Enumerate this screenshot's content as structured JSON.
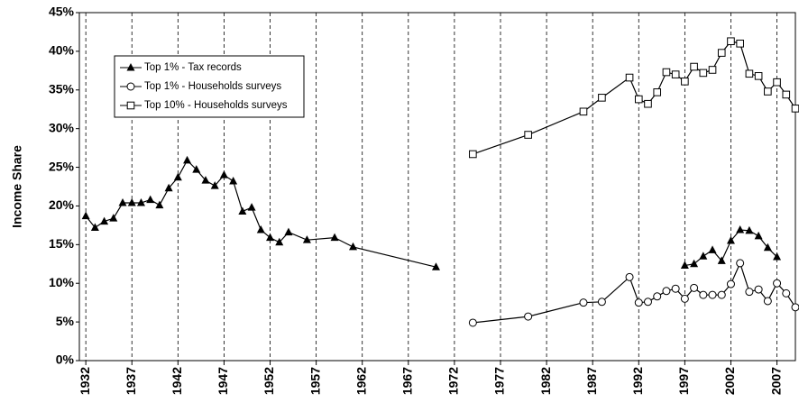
{
  "chart_data": {
    "type": "line",
    "y_label": "Income Share",
    "xlim": [
      1931.3,
      2009
    ],
    "xticks": [
      1932,
      1937,
      1942,
      1947,
      1952,
      1957,
      1962,
      1967,
      1972,
      1977,
      1982,
      1987,
      1992,
      1997,
      2002,
      2007
    ],
    "ylim": [
      0,
      45
    ],
    "yticks": [
      {
        "value": 0,
        "label": "0%"
      },
      {
        "value": 5,
        "label": "5%"
      },
      {
        "value": 10,
        "label": "10%"
      },
      {
        "value": 15,
        "label": "15%"
      },
      {
        "value": 20,
        "label": "20%"
      },
      {
        "value": 25,
        "label": "25%"
      },
      {
        "value": 30,
        "label": "30%"
      },
      {
        "value": 35,
        "label": "35%"
      },
      {
        "value": 40,
        "label": "40%"
      },
      {
        "value": 45,
        "label": "45%"
      }
    ],
    "grid": true,
    "legend": "upper left",
    "series": [
      {
        "name": "Top 1% - Tax records",
        "color": "#000000",
        "marker": "triangle",
        "x": [
          1932,
          1933,
          1934,
          1935,
          1936,
          1937,
          1938,
          1939,
          1940,
          1941,
          1942,
          1943,
          1944,
          1945,
          1946,
          1947,
          1948,
          1949,
          1950,
          1951,
          1952,
          1953,
          1954,
          1956,
          1959,
          1961,
          1970,
          null,
          1997,
          1998,
          1999,
          2000,
          2001,
          2002,
          2003,
          2004,
          2005,
          2006,
          2007
        ],
        "values": [
          18.7,
          17.2,
          18.0,
          18.4,
          20.4,
          20.4,
          20.4,
          20.8,
          20.1,
          22.3,
          23.7,
          25.9,
          24.7,
          23.3,
          22.6,
          24.0,
          23.2,
          19.3,
          19.8,
          16.9,
          15.9,
          15.3,
          16.6,
          15.6,
          15.9,
          14.7,
          12.1,
          null,
          12.3,
          12.5,
          13.5,
          14.3,
          12.9,
          15.5,
          16.9,
          16.8,
          16.1,
          14.6,
          13.4
        ]
      },
      {
        "name": "Top 1% - Households surveys",
        "color": "#000000",
        "marker": "circle",
        "x": [
          1974,
          1980,
          1986,
          1988,
          1991,
          1992,
          1993,
          1994,
          1995,
          1996,
          1997,
          1998,
          1999,
          2000,
          2001,
          2002,
          2003,
          2004,
          2005,
          2006,
          2007,
          2008,
          2009
        ],
        "values": [
          4.9,
          5.7,
          7.5,
          7.6,
          10.8,
          7.5,
          7.6,
          8.3,
          9.0,
          9.3,
          8.0,
          9.4,
          8.5,
          8.5,
          8.5,
          9.9,
          12.6,
          8.9,
          9.2,
          7.7,
          10.0,
          8.7,
          6.9
        ]
      },
      {
        "name": "Top 10% - Households surveys",
        "color": "#000000",
        "marker": "square",
        "x": [
          1974,
          1980,
          1986,
          1988,
          1991,
          1992,
          1993,
          1994,
          1995,
          1996,
          1997,
          1998,
          1999,
          2000,
          2001,
          2002,
          2003,
          2004,
          2005,
          2006,
          2007,
          2008,
          2009
        ],
        "values": [
          26.7,
          29.2,
          32.2,
          34.0,
          36.6,
          33.8,
          33.2,
          34.7,
          37.3,
          37.0,
          36.1,
          38.0,
          37.2,
          37.6,
          39.8,
          41.3,
          41.0,
          37.1,
          36.8,
          34.8,
          36.0,
          34.4,
          32.6
        ]
      }
    ]
  }
}
